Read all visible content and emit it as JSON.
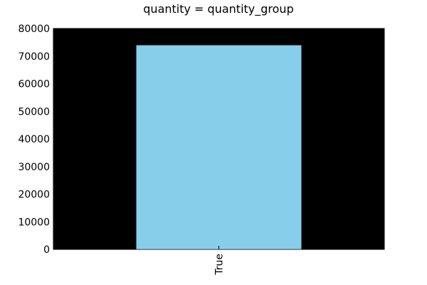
{
  "chart_data": {
    "type": "bar",
    "title": "quantity = quantity_group",
    "categories": [
      "True"
    ],
    "values": [
      74000
    ],
    "xlabel": "",
    "ylabel": "",
    "ylim": [
      0,
      80000
    ],
    "yticks": [
      0,
      10000,
      20000,
      30000,
      40000,
      50000,
      60000,
      70000,
      80000
    ],
    "grid": false,
    "legend": "none"
  },
  "colors": {
    "bar": "#87ceeb",
    "plot_background": "#000000",
    "page_background": "#ffffff"
  }
}
